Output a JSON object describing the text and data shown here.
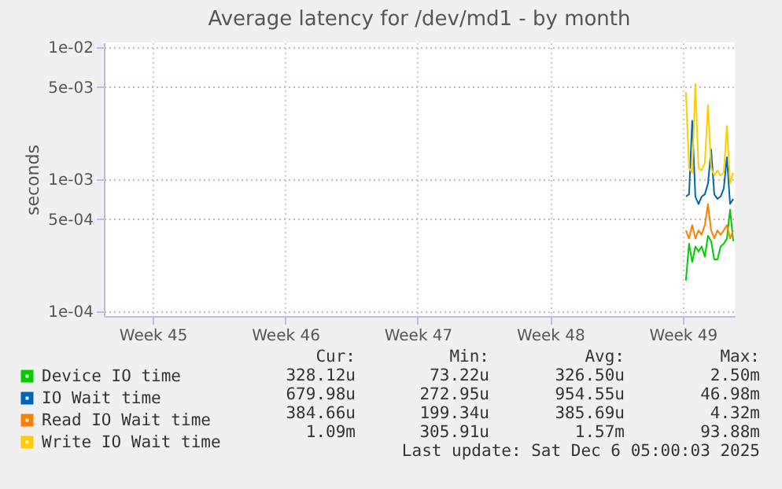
{
  "chart_data": {
    "type": "line",
    "title": "Average latency for /dev/md1 - by month",
    "ylabel": "seconds",
    "log": "y",
    "grid": true,
    "legend": "bottom left",
    "categories": [
      null,
      null,
      null,
      null,
      null,
      null,
      null,
      null,
      null,
      null,
      null,
      null,
      null,
      null,
      null,
      "Week 45",
      null,
      null,
      null,
      null,
      null,
      null,
      null,
      null,
      null,
      null,
      null,
      null,
      null,
      null,
      null,
      null,
      null,
      null,
      null,
      null,
      null,
      null,
      null,
      null,
      null,
      null,
      null,
      null,
      null,
      null,
      null,
      null,
      null,
      null,
      null,
      null,
      null,
      null,
      null,
      null,
      null,
      "Week 46",
      null,
      null,
      null,
      null,
      null,
      null,
      null,
      null,
      null,
      null,
      null,
      null,
      null,
      null,
      null,
      null,
      null,
      null,
      null,
      null,
      null,
      null,
      null,
      null,
      null,
      null,
      null,
      null,
      null,
      null,
      null,
      null,
      null,
      null,
      null,
      null,
      null,
      null,
      null,
      null,
      null,
      "Week 47",
      null,
      null,
      null,
      null,
      null,
      null,
      null,
      null,
      null,
      null,
      null,
      null,
      null,
      null,
      null,
      null,
      null,
      null,
      null,
      null,
      null,
      null,
      null,
      null,
      null,
      null,
      null,
      null,
      null,
      null,
      null,
      null,
      null,
      null,
      null,
      null,
      null,
      null,
      null,
      null,
      null,
      "Week 48",
      null,
      null,
      null,
      null,
      null,
      null,
      null,
      null,
      null,
      null,
      null,
      null,
      null,
      null,
      null,
      null,
      null,
      null,
      null,
      null,
      null,
      null,
      null,
      null,
      null,
      null,
      null,
      null,
      null,
      null,
      null,
      null,
      null,
      null,
      null,
      null,
      null,
      null,
      null,
      null,
      null,
      "Week 49",
      null,
      null,
      null,
      null,
      null,
      null,
      null,
      null,
      null,
      null,
      null,
      null,
      null,
      null,
      null,
      null
    ],
    "ylim": [
      9.2e-05,
      0.0109
    ],
    "yticks": [
      {
        "value": 0.0001,
        "label": "1e-04"
      },
      {
        "value": 0.0005,
        "label": "5e-04"
      },
      {
        "value": 0.001,
        "label": "1e-03"
      },
      {
        "value": 0.005,
        "label": "5e-03"
      },
      {
        "value": 0.01,
        "label": "1e-02"
      }
    ],
    "series": [
      {
        "name": "Device IO time",
        "color": "#00cc00",
        "values": [
          null,
          null,
          null,
          null,
          null,
          null,
          null,
          null,
          null,
          null,
          null,
          null,
          null,
          null,
          null,
          null,
          null,
          null,
          null,
          null,
          null,
          null,
          null,
          null,
          null,
          null,
          null,
          null,
          null,
          null,
          null,
          null,
          null,
          null,
          null,
          null,
          null,
          null,
          null,
          null,
          null,
          null,
          null,
          null,
          null,
          null,
          null,
          null,
          null,
          null,
          null,
          null,
          null,
          null,
          null,
          null,
          null,
          null,
          null,
          null,
          null,
          null,
          null,
          null,
          null,
          null,
          null,
          null,
          null,
          null,
          null,
          null,
          null,
          null,
          null,
          null,
          null,
          null,
          null,
          null,
          null,
          null,
          null,
          null,
          null,
          null,
          null,
          null,
          null,
          null,
          null,
          null,
          null,
          null,
          null,
          null,
          null,
          null,
          null,
          null,
          null,
          null,
          null,
          null,
          null,
          null,
          null,
          null,
          null,
          null,
          null,
          null,
          null,
          null,
          null,
          null,
          null,
          null,
          null,
          null,
          null,
          null,
          null,
          null,
          null,
          null,
          null,
          null,
          null,
          null,
          null,
          null,
          null,
          null,
          null,
          null,
          null,
          null,
          null,
          null,
          null,
          null,
          null,
          null,
          null,
          null,
          null,
          null,
          null,
          null,
          null,
          null,
          null,
          null,
          null,
          null,
          null,
          null,
          null,
          null,
          null,
          null,
          null,
          null,
          null,
          null,
          null,
          null,
          null,
          null,
          null,
          null,
          null,
          null,
          null,
          null,
          null,
          null,
          null,
          null,
          null,
          null,
          null,
          null,
          0.000171,
          0.000325,
          0.000236,
          0.00031,
          0.000283,
          0.00031,
          0.000259,
          0.000373,
          0.00034,
          0.000247,
          0.000247,
          0.00031,
          0.000325,
          0.000356,
          0.00059,
          0.00034
        ]
      },
      {
        "name": "IO Wait time",
        "color": "#0066b3",
        "values": [
          null,
          null,
          null,
          null,
          null,
          null,
          null,
          null,
          null,
          null,
          null,
          null,
          null,
          null,
          null,
          null,
          null,
          null,
          null,
          null,
          null,
          null,
          null,
          null,
          null,
          null,
          null,
          null,
          null,
          null,
          null,
          null,
          null,
          null,
          null,
          null,
          null,
          null,
          null,
          null,
          null,
          null,
          null,
          null,
          null,
          null,
          null,
          null,
          null,
          null,
          null,
          null,
          null,
          null,
          null,
          null,
          null,
          null,
          null,
          null,
          null,
          null,
          null,
          null,
          null,
          null,
          null,
          null,
          null,
          null,
          null,
          null,
          null,
          null,
          null,
          null,
          null,
          null,
          null,
          null,
          null,
          null,
          null,
          null,
          null,
          null,
          null,
          null,
          null,
          null,
          null,
          null,
          null,
          null,
          null,
          null,
          null,
          null,
          null,
          null,
          null,
          null,
          null,
          null,
          null,
          null,
          null,
          null,
          null,
          null,
          null,
          null,
          null,
          null,
          null,
          null,
          null,
          null,
          null,
          null,
          null,
          null,
          null,
          null,
          null,
          null,
          null,
          null,
          null,
          null,
          null,
          null,
          null,
          null,
          null,
          null,
          null,
          null,
          null,
          null,
          null,
          null,
          null,
          null,
          null,
          null,
          null,
          null,
          null,
          null,
          null,
          null,
          null,
          null,
          null,
          null,
          null,
          null,
          null,
          null,
          null,
          null,
          null,
          null,
          null,
          null,
          null,
          null,
          null,
          null,
          null,
          null,
          null,
          null,
          null,
          null,
          null,
          null,
          null,
          null,
          null,
          null,
          null,
          null,
          0.00074,
          0.00077,
          0.00278,
          0.00074,
          0.00065,
          0.00074,
          0.00077,
          0.00093,
          0.00168,
          0.00077,
          0.00071,
          0.00074,
          0.00085,
          0.00147,
          0.00065,
          0.00071
        ]
      },
      {
        "name": "Read IO Wait time",
        "color": "#ff8000",
        "values": [
          null,
          null,
          null,
          null,
          null,
          null,
          null,
          null,
          null,
          null,
          null,
          null,
          null,
          null,
          null,
          null,
          null,
          null,
          null,
          null,
          null,
          null,
          null,
          null,
          null,
          null,
          null,
          null,
          null,
          null,
          null,
          null,
          null,
          null,
          null,
          null,
          null,
          null,
          null,
          null,
          null,
          null,
          null,
          null,
          null,
          null,
          null,
          null,
          null,
          null,
          null,
          null,
          null,
          null,
          null,
          null,
          null,
          null,
          null,
          null,
          null,
          null,
          null,
          null,
          null,
          null,
          null,
          null,
          null,
          null,
          null,
          null,
          null,
          null,
          null,
          null,
          null,
          null,
          null,
          null,
          null,
          null,
          null,
          null,
          null,
          null,
          null,
          null,
          null,
          null,
          null,
          null,
          null,
          null,
          null,
          null,
          null,
          null,
          null,
          null,
          null,
          null,
          null,
          null,
          null,
          null,
          null,
          null,
          null,
          null,
          null,
          null,
          null,
          null,
          null,
          null,
          null,
          null,
          null,
          null,
          null,
          null,
          null,
          null,
          null,
          null,
          null,
          null,
          null,
          null,
          null,
          null,
          null,
          null,
          null,
          null,
          null,
          null,
          null,
          null,
          null,
          null,
          null,
          null,
          null,
          null,
          null,
          null,
          null,
          null,
          null,
          null,
          null,
          null,
          null,
          null,
          null,
          null,
          null,
          null,
          null,
          null,
          null,
          null,
          null,
          null,
          null,
          null,
          null,
          null,
          null,
          null,
          null,
          null,
          null,
          null,
          null,
          null,
          null,
          null,
          null,
          null,
          null,
          null,
          0.00041,
          0.000356,
          0.00045,
          0.000356,
          0.00041,
          0.00038,
          0.00045,
          0.00065,
          0.00041,
          0.000356,
          0.00041,
          0.00038,
          0.00041,
          0.00045,
          0.000356,
          0.00041
        ]
      },
      {
        "name": "Write IO Wait time",
        "color": "#ffcc00",
        "values": [
          null,
          null,
          null,
          null,
          null,
          null,
          null,
          null,
          null,
          null,
          null,
          null,
          null,
          null,
          null,
          null,
          null,
          null,
          null,
          null,
          null,
          null,
          null,
          null,
          null,
          null,
          null,
          null,
          null,
          null,
          null,
          null,
          null,
          null,
          null,
          null,
          null,
          null,
          null,
          null,
          null,
          null,
          null,
          null,
          null,
          null,
          null,
          null,
          null,
          null,
          null,
          null,
          null,
          null,
          null,
          null,
          null,
          null,
          null,
          null,
          null,
          null,
          null,
          null,
          null,
          null,
          null,
          null,
          null,
          null,
          null,
          null,
          null,
          null,
          null,
          null,
          null,
          null,
          null,
          null,
          null,
          null,
          null,
          null,
          null,
          null,
          null,
          null,
          null,
          null,
          null,
          null,
          null,
          null,
          null,
          null,
          null,
          null,
          null,
          null,
          null,
          null,
          null,
          null,
          null,
          null,
          null,
          null,
          null,
          null,
          null,
          null,
          null,
          null,
          null,
          null,
          null,
          null,
          null,
          null,
          null,
          null,
          null,
          null,
          null,
          null,
          null,
          null,
          null,
          null,
          null,
          null,
          null,
          null,
          null,
          null,
          null,
          null,
          null,
          null,
          null,
          null,
          null,
          null,
          null,
          null,
          null,
          null,
          null,
          null,
          null,
          null,
          null,
          null,
          null,
          null,
          null,
          null,
          null,
          null,
          null,
          null,
          null,
          null,
          null,
          null,
          null,
          null,
          null,
          null,
          null,
          null,
          null,
          null,
          null,
          null,
          null,
          null,
          null,
          null,
          null,
          null,
          null,
          null,
          0.0046,
          0.00122,
          0.00112,
          0.0053,
          0.00122,
          0.00117,
          0.00134,
          0.00365,
          0.00122,
          0.00107,
          0.00117,
          0.00107,
          0.00112,
          0.00254,
          0.00093,
          0.00112
        ]
      }
    ],
    "annotations": [
      "Cur:",
      "Min:",
      "Avg:",
      "Max:",
      "328.12u",
      "73.22u",
      "326.50u",
      "2.50m",
      "679.98u",
      "272.95u",
      "954.55u",
      "46.98m",
      "384.66u",
      "199.34u",
      "385.69u",
      "4.32m",
      "1.09m",
      "305.91u",
      "1.57m",
      "93.88m",
      "Last update: Sat Dec  6 05:00:03 2025"
    ]
  }
}
